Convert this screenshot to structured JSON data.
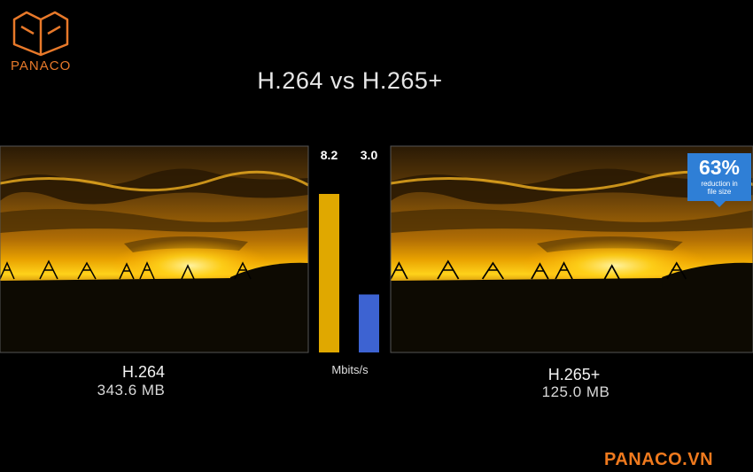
{
  "logo": {
    "text": "PANACO"
  },
  "title": "H.264 vs H.265+",
  "left": {
    "codec": "H.264",
    "size": "343.6 MB"
  },
  "right": {
    "codec": "H.265+",
    "size": "125.0 MB",
    "badge": {
      "percent": "63%",
      "text": "reduction in file size"
    }
  },
  "chart_data": {
    "type": "bar",
    "values": [
      8.2,
      3.0
    ],
    "value_labels": [
      "8.2",
      "3.0"
    ],
    "colors": [
      "#e0a800",
      "#3d63d2"
    ],
    "unit": "Mbits/s"
  },
  "footer": "PANACO.VN"
}
